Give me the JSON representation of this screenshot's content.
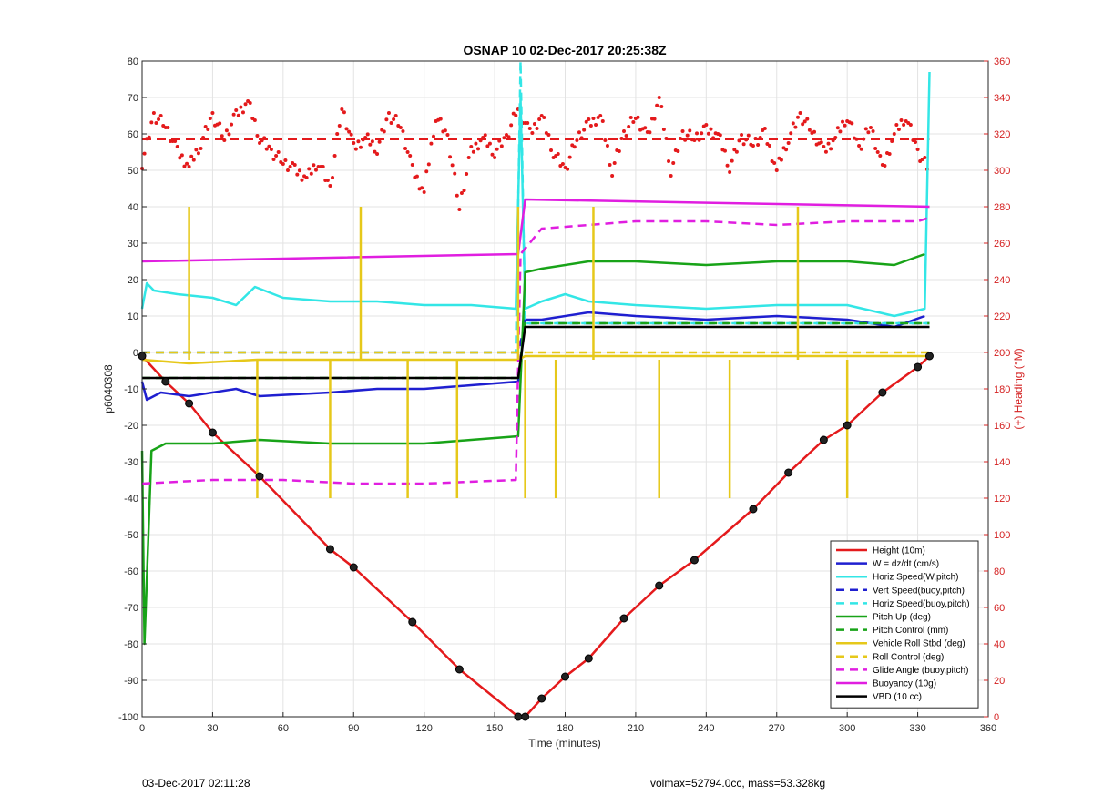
{
  "chart_data": {
    "type": "line",
    "title": "OSNAP 10 02-Dec-2017 20:25:38Z",
    "xlabel": "Time (minutes)",
    "ylabel_left": "p6040308",
    "ylabel_right": "(+) Heading (°M)",
    "xlim": [
      0,
      360
    ],
    "ylim_left": [
      -100,
      80
    ],
    "ylim_right": [
      0,
      360
    ],
    "xticks": [
      0,
      30,
      60,
      90,
      120,
      150,
      180,
      210,
      240,
      270,
      300,
      330,
      360
    ],
    "yticks_left": [
      80,
      70,
      60,
      50,
      40,
      30,
      20,
      10,
      0,
      -10,
      -20,
      -30,
      -40,
      -50,
      -60,
      -70,
      -80,
      -90,
      -100
    ],
    "yticks_right": [
      360,
      340,
      320,
      300,
      280,
      260,
      240,
      220,
      200,
      180,
      160,
      140,
      120,
      100,
      80,
      60,
      40,
      20,
      0
    ],
    "grid": true,
    "legend_position": "bottom-right",
    "colors": {
      "red": "#e41a1c",
      "blue": "#1f1fd0",
      "cyan": "#33e6e6",
      "green": "#18a318",
      "yellow": "#e6c81a",
      "magenta": "#e01ee0",
      "black": "#000000",
      "axis_right": "#d42020"
    },
    "series": [
      {
        "name": "Height (10m)",
        "style": "solid",
        "color": "#e41a1c",
        "axis": "left",
        "x": [
          0,
          10,
          20,
          30,
          50,
          80,
          90,
          115,
          135,
          160,
          163,
          170,
          180,
          190,
          205,
          220,
          235,
          260,
          275,
          290,
          300,
          315,
          330,
          335
        ],
        "y": [
          -1,
          -8,
          -14,
          -22,
          -34,
          -54,
          -59,
          -74,
          -87,
          -100,
          -100,
          -95,
          -89,
          -84,
          -73,
          -64,
          -57,
          -43,
          -33,
          -24,
          -20,
          -11,
          -4,
          -1
        ]
      },
      {
        "name": "W = dz/dt (cm/s)",
        "style": "solid",
        "color": "#1f1fd0",
        "axis": "left",
        "x": [
          0,
          2,
          8,
          20,
          40,
          50,
          80,
          100,
          120,
          140,
          160,
          163,
          170,
          190,
          210,
          240,
          270,
          300,
          320,
          333
        ],
        "y": [
          -8,
          -13,
          -11,
          -12,
          -10,
          -12,
          -11,
          -10,
          -10,
          -9,
          -8,
          9,
          9,
          11,
          10,
          9,
          10,
          9,
          7,
          10
        ]
      },
      {
        "name": "Horiz Speed(W,pitch)",
        "style": "solid",
        "color": "#33e6e6",
        "axis": "left",
        "x": [
          0,
          2,
          5,
          15,
          30,
          40,
          48,
          60,
          80,
          100,
          120,
          140,
          159,
          161,
          163,
          170,
          180,
          190,
          210,
          240,
          270,
          300,
          320,
          333,
          335
        ],
        "y": [
          12,
          19,
          17,
          16,
          15,
          13,
          18,
          15,
          14,
          14,
          13,
          13,
          12,
          70,
          12,
          14,
          16,
          14,
          13,
          12,
          13,
          13,
          10,
          12,
          77
        ]
      },
      {
        "name": "Vert Speed(buoy,pitch)",
        "style": "dashed",
        "color": "#1f1fd0",
        "axis": "left",
        "x": [
          0,
          160,
          163,
          335
        ],
        "y": [
          0,
          0,
          8,
          8
        ]
      },
      {
        "name": "Horiz Speed(buoy,pitch)",
        "style": "dashed",
        "color": "#33e6e6",
        "axis": "left",
        "x": [
          0,
          159,
          161,
          163,
          335
        ],
        "y": [
          0,
          0,
          80,
          8,
          8
        ]
      },
      {
        "name": "Pitch Up (deg)",
        "style": "solid",
        "color": "#18a318",
        "axis": "left",
        "x": [
          0,
          1,
          4,
          10,
          30,
          50,
          80,
          100,
          120,
          140,
          160,
          163,
          170,
          190,
          210,
          240,
          270,
          300,
          320,
          333
        ],
        "y": [
          -27,
          -80,
          -27,
          -25,
          -25,
          -24,
          -25,
          -25,
          -25,
          -24,
          -23,
          22,
          23,
          25,
          25,
          24,
          25,
          25,
          24,
          27
        ]
      },
      {
        "name": "Pitch Control (mm)",
        "style": "dashed",
        "color": "#18a318",
        "axis": "left",
        "x": [
          0,
          160,
          163,
          335
        ],
        "y": [
          -7,
          -7,
          8,
          8
        ]
      },
      {
        "name": "Vehicle Roll Stbd (deg)",
        "style": "solid",
        "color": "#e6c81a",
        "axis": "left",
        "x": [
          0,
          20,
          49,
          80,
          93,
          113,
          134,
          160,
          163,
          176,
          192,
          220,
          250,
          279,
          300,
          335
        ],
        "y": [
          -2,
          -3,
          -2,
          -2,
          -2,
          -2,
          -2,
          -2,
          -1,
          -1,
          -1,
          -1,
          -1,
          -1,
          -1,
          -1
        ]
      },
      {
        "name": "Roll Control (deg)",
        "style": "dashed",
        "color": "#e6c81a",
        "axis": "left",
        "x": [
          0,
          335
        ],
        "y": [
          0,
          0
        ]
      },
      {
        "name": "Glide Angle (buoy,pitch)",
        "style": "dashed",
        "color": "#e01ee0",
        "axis": "left",
        "x": [
          0,
          30,
          60,
          90,
          120,
          159,
          161,
          170,
          190,
          210,
          240,
          270,
          300,
          330,
          335
        ],
        "y": [
          -36,
          -35,
          -35,
          -36,
          -36,
          -35,
          27,
          34,
          35,
          36,
          36,
          35,
          36,
          36,
          37
        ]
      },
      {
        "name": "Buoyancy (10g)",
        "style": "solid",
        "color": "#e01ee0",
        "axis": "left",
        "x": [
          0,
          160,
          163,
          335
        ],
        "y": [
          25,
          27,
          42,
          40
        ]
      },
      {
        "name": "VBD (10 cc)",
        "style": "solid",
        "color": "#000000",
        "axis": "left",
        "x": [
          0,
          160,
          163,
          335
        ],
        "y": [
          -7,
          -7,
          7,
          7
        ]
      }
    ],
    "heading": {
      "name": "Heading",
      "style": "dots",
      "color": "#e41a1c",
      "axis": "right",
      "mean": 317,
      "x": [
        0,
        5,
        10,
        15,
        20,
        25,
        30,
        35,
        40,
        45,
        50,
        55,
        60,
        65,
        70,
        75,
        80,
        85,
        90,
        95,
        100,
        105,
        110,
        115,
        120,
        125,
        130,
        135,
        140,
        145,
        150,
        155,
        160,
        165,
        170,
        175,
        180,
        185,
        190,
        195,
        200,
        205,
        210,
        215,
        220,
        225,
        230,
        235,
        240,
        245,
        250,
        255,
        260,
        265,
        270,
        275,
        280,
        285,
        290,
        295,
        300,
        305,
        310,
        315,
        320,
        325,
        330,
        335
      ],
      "y": [
        304,
        330,
        325,
        310,
        302,
        315,
        330,
        318,
        330,
        338,
        318,
        310,
        305,
        300,
        296,
        305,
        290,
        335,
        312,
        318,
        312,
        330,
        325,
        300,
        288,
        330,
        318,
        280,
        310,
        318,
        310,
        318,
        335,
        320,
        330,
        310,
        300,
        318,
        325,
        330,
        300,
        320,
        330,
        318,
        340,
        300,
        320,
        318,
        322,
        320,
        302,
        318,
        315,
        320,
        300,
        318,
        330,
        322,
        310,
        318,
        330,
        312,
        325,
        300,
        320,
        330,
        310,
        300
      ]
    }
  },
  "footer": {
    "left": "03-Dec-2017 02:11:28",
    "right": "volmax=52794.0cc, mass=53.328kg"
  }
}
